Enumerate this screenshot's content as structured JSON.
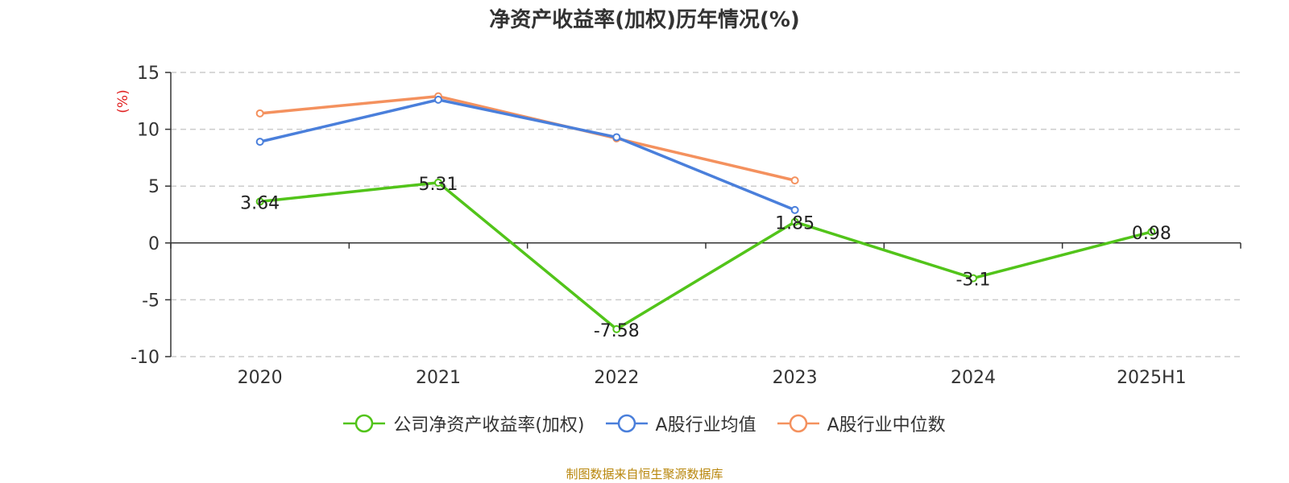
{
  "chart_data": {
    "type": "line",
    "title": "净资产收益率(加权)历年情况(%)",
    "ylabel": "(%)",
    "xlabel": "",
    "categories": [
      "2020",
      "2021",
      "2022",
      "2023",
      "2024",
      "2025H1"
    ],
    "ylim": [
      -10,
      15
    ],
    "yticks": [
      15,
      10,
      5,
      0,
      -5,
      -10
    ],
    "grid": true,
    "legend_position": "bottom",
    "series": [
      {
        "name": "公司净资产收益率(加权)",
        "color": "#52c41a",
        "values": [
          3.64,
          5.31,
          -7.58,
          1.85,
          -3.1,
          0.98
        ],
        "labels": [
          "3.64",
          "5.31",
          "-7.58",
          "1.85",
          "-3.1",
          "0.98"
        ]
      },
      {
        "name": "A股行业均值",
        "color": "#4a7fdb",
        "values": [
          8.9,
          12.6,
          9.3,
          2.9,
          null,
          null
        ]
      },
      {
        "name": "A股行业中位数",
        "color": "#f4915e",
        "values": [
          11.4,
          12.9,
          9.2,
          5.5,
          null,
          null
        ]
      }
    ]
  },
  "source_note": "制图数据来自恒生聚源数据库"
}
